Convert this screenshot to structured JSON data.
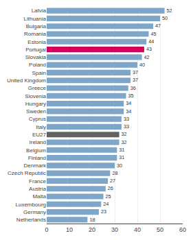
{
  "chart_data": {
    "type": "bar",
    "orientation": "horizontal",
    "categories": [
      "Netherlands",
      "Germany",
      "Luxembourg",
      "Malta",
      "Austria",
      "France",
      "Czech Republic",
      "Denmark",
      "Finland",
      "Belgium",
      "Ireland",
      "EU27",
      "Italy",
      "Cyprus",
      "Sweden",
      "Hungary",
      "Slovenia",
      "Greece",
      "United Kingdom",
      "Spain",
      "Poland",
      "Slovakia",
      "Portugal",
      "Estonia",
      "Romania",
      "Bulgaria",
      "Lithuania",
      "Latvia"
    ],
    "values": [
      18,
      23,
      24,
      25,
      26,
      27,
      28,
      30,
      31,
      31,
      32,
      32,
      33,
      33,
      34,
      34,
      35,
      36,
      37,
      37,
      40,
      42,
      43,
      44,
      45,
      47,
      50,
      52
    ],
    "colors": [
      "#7da6c8",
      "#7da6c8",
      "#7da6c8",
      "#7da6c8",
      "#7da6c8",
      "#7da6c8",
      "#7da6c8",
      "#7da6c8",
      "#7da6c8",
      "#7da6c8",
      "#7da6c8",
      "#636363",
      "#7da6c8",
      "#7da6c8",
      "#7da6c8",
      "#7da6c8",
      "#7da6c8",
      "#7da6c8",
      "#7da6c8",
      "#7da6c8",
      "#7da6c8",
      "#7da6c8",
      "#d4005a",
      "#7da6c8",
      "#7da6c8",
      "#7da6c8",
      "#7da6c8",
      "#7da6c8"
    ],
    "xlim": [
      0,
      60
    ],
    "xticks": [
      0,
      10,
      20,
      30,
      40,
      50,
      60
    ],
    "grid": true,
    "data_labels": true
  }
}
